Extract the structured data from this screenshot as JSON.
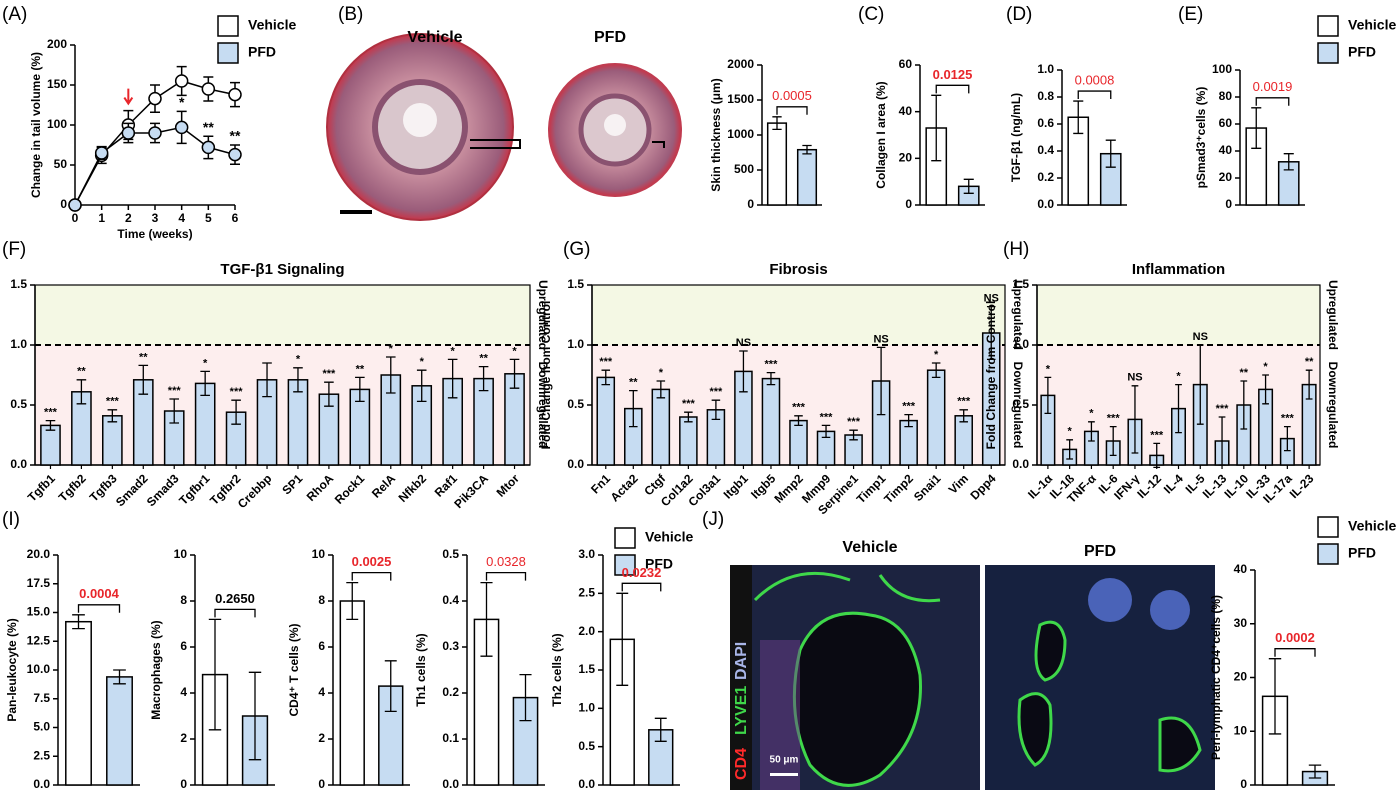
{
  "panel_labels": [
    "(A)",
    "(B)",
    "(C)",
    "(D)",
    "(E)",
    "(F)",
    "(G)",
    "(H)",
    "(I)",
    "(J)"
  ],
  "images": {
    "b_left": "Vehicle",
    "b_right": "PFD",
    "j_left": "Vehicle",
    "j_right": "PFD",
    "stain": [
      "CD4",
      "LYVE1",
      "DAPI"
    ],
    "scale_bar": "50 μm"
  },
  "side_labels": [
    "Upregulated",
    "Downregulated"
  ],
  "chart_data": [
    {
      "type": "line",
      "xlabel": "Time (weeks)",
      "ylabel": "Change in tail volume (%)",
      "x": [
        0,
        1,
        2,
        3,
        4,
        5,
        6
      ],
      "xlim": [
        0,
        6
      ],
      "xticks": [
        0,
        1,
        2,
        3,
        4,
        5,
        6
      ],
      "ylim": [
        0,
        200
      ],
      "yticks": [
        0,
        50,
        100,
        150,
        200
      ],
      "series": [
        {
          "name": "Vehicle",
          "color": "#ffffff",
          "values": [
            0,
            62,
            100,
            133,
            155,
            145,
            138
          ],
          "errors": [
            0,
            10,
            18,
            17,
            18,
            15,
            15
          ]
        },
        {
          "name": "PFD",
          "color": "#c6dcf2",
          "values": [
            0,
            65,
            90,
            90,
            97,
            72,
            63
          ],
          "errors": [
            0,
            8,
            12,
            12,
            20,
            14,
            12
          ]
        }
      ],
      "annotations": [
        null,
        null,
        null,
        null,
        "*",
        "**",
        "**"
      ]
    },
    {
      "type": "bar",
      "ylabel": "Skin thickness (μm)",
      "categories": [
        null,
        null
      ],
      "values": [
        1170,
        790
      ],
      "errors": [
        90,
        60
      ],
      "colors": [
        "#ffffff",
        "#c6dcf2"
      ],
      "ylim": [
        0,
        2000
      ],
      "yticks": [
        0,
        500,
        1000,
        1500,
        2000
      ],
      "p_label": "0.0005",
      "p_color": "#e8262b",
      "p_bold": false
    },
    {
      "type": "bar",
      "ylabel": "Collagen I area (%)",
      "categories": [
        null,
        null
      ],
      "values": [
        33,
        8
      ],
      "errors": [
        14,
        3
      ],
      "colors": [
        "#ffffff",
        "#c6dcf2"
      ],
      "ylim": [
        0,
        60
      ],
      "yticks": [
        0,
        20,
        40,
        60
      ],
      "p_label": "0.0125",
      "p_color": "#e8262b",
      "p_bold": true
    },
    {
      "type": "bar",
      "ylabel": "TGF-β1 (ng/mL)",
      "categories": [
        null,
        null
      ],
      "values": [
        0.65,
        0.38
      ],
      "errors": [
        0.12,
        0.1
      ],
      "colors": [
        "#ffffff",
        "#c6dcf2"
      ],
      "ylim": [
        0,
        1
      ],
      "yticks": [
        {
          "value": 0,
          "label": "0.0"
        },
        0.2,
        0.4,
        0.6,
        0.8,
        {
          "value": 1,
          "label": "1.0"
        }
      ],
      "p_label": "0.0008",
      "p_color": "#e8262b",
      "p_bold": false
    },
    {
      "type": "bar",
      "ylabel": "pSmad3⁺cells (%)",
      "categories": [
        null,
        null
      ],
      "values": [
        57,
        32
      ],
      "errors": [
        15,
        6
      ],
      "colors": [
        "#ffffff",
        "#c6dcf2"
      ],
      "ylim": [
        0,
        100
      ],
      "yticks": [
        0,
        20,
        40,
        60,
        80,
        100
      ],
      "p_label": "0.0019",
      "p_color": "#e8262b",
      "p_bold": false
    },
    {
      "type": "bar",
      "title": "TGF-β1 Signaling",
      "ylabel": "Fold Change from  Control",
      "color": "#c6dcf2",
      "ylim": [
        0,
        1.5
      ],
      "yticks": [
        {
          "value": 0,
          "label": "0.0"
        },
        0.5,
        {
          "value": 1,
          "label": "1.0"
        },
        1.5
      ],
      "reference_line": 1,
      "categories": [
        "Tgfb1",
        "Tgfb2",
        "Tgfb3",
        "Smad2",
        "Smad3",
        "Tgfbr1",
        "Tgfbr2",
        "Crebbp",
        "SP1",
        "RhoA",
        "Rock1",
        "RelA",
        "Nfkb2",
        "Raf1",
        "Pik3CA",
        "Mtor"
      ],
      "values": [
        0.33,
        0.61,
        0.41,
        0.71,
        0.45,
        0.68,
        0.44,
        0.71,
        0.71,
        0.59,
        0.63,
        0.75,
        0.66,
        0.72,
        0.72,
        0.76
      ],
      "errors": [
        0.04,
        0.1,
        0.05,
        0.12,
        0.1,
        0.1,
        0.1,
        0.14,
        0.1,
        0.1,
        0.1,
        0.15,
        0.13,
        0.16,
        0.1,
        0.12
      ],
      "annotations": [
        "***",
        "**",
        "***",
        "**",
        "***",
        "*",
        "***",
        null,
        "*",
        "***",
        "**",
        "*",
        "*",
        "*",
        "**",
        "*"
      ]
    },
    {
      "type": "bar",
      "title": "Fibrosis",
      "ylabel": "Fold Change from  Control",
      "color": "#c6dcf2",
      "ylim": [
        0,
        1.5
      ],
      "yticks": [
        {
          "value": 0,
          "label": "0.0"
        },
        0.5,
        {
          "value": 1,
          "label": "1.0"
        },
        1.5
      ],
      "reference_line": 1,
      "categories": [
        "Fn1",
        "Acta2",
        "Ctgf",
        "Col1a2",
        "Col3a1",
        "Itgb1",
        "Itgb5",
        "Mmp2",
        "Mmp9",
        "Serpine1",
        "Timp1",
        "Timp2",
        "Snai1",
        "Vim",
        "Dpp4"
      ],
      "values": [
        0.73,
        0.47,
        0.63,
        0.4,
        0.46,
        0.78,
        0.72,
        0.37,
        0.28,
        0.25,
        0.7,
        0.37,
        0.79,
        0.41,
        1.1
      ],
      "errors": [
        0.06,
        0.15,
        0.07,
        0.04,
        0.08,
        0.17,
        0.05,
        0.04,
        0.05,
        0.04,
        0.28,
        0.05,
        0.06,
        0.05,
        0.22
      ],
      "annotations": [
        "***",
        "**",
        "*",
        "***",
        "***",
        "NS",
        "***",
        "***",
        "***",
        "***",
        "NS",
        "***",
        "*",
        "***",
        "NS"
      ]
    },
    {
      "type": "bar",
      "title": "Inflammation",
      "ylabel": "Fold Change from  Control",
      "color": "#c6dcf2",
      "ylim": [
        0,
        1.5
      ],
      "yticks": [
        {
          "value": 0,
          "label": "0.0"
        },
        0.5,
        {
          "value": 1,
          "label": "1.0"
        },
        1.5
      ],
      "reference_line": 1,
      "categories": [
        "IL-1α",
        "IL-1ß",
        "TNF-α",
        "IL-6",
        "IFN-γ",
        "IL-12",
        "IL-4",
        "IL-5",
        "IL-13",
        "IL-10",
        "IL-33",
        "IL-17a",
        "IL-23"
      ],
      "values": [
        0.58,
        0.13,
        0.28,
        0.2,
        0.38,
        0.08,
        0.47,
        0.67,
        0.2,
        0.5,
        0.63,
        0.22,
        0.67
      ],
      "errors": [
        0.15,
        0.08,
        0.08,
        0.12,
        0.28,
        0.1,
        0.2,
        0.33,
        0.2,
        0.2,
        0.12,
        0.1,
        0.12
      ],
      "annotations": [
        "*",
        "*",
        "*",
        "***",
        "NS",
        "***",
        "*",
        "NS",
        "***",
        "**",
        "*",
        "***",
        "**"
      ]
    },
    {
      "type": "bar",
      "ylabel": "Pan-leukocyte (%)",
      "categories": [
        null,
        null
      ],
      "values": [
        14.2,
        9.4
      ],
      "errors": [
        0.6,
        0.6
      ],
      "colors": [
        "#ffffff",
        "#c6dcf2"
      ],
      "ylim": [
        0,
        20
      ],
      "yticks": [
        {
          "value": 0,
          "label": "0.0"
        },
        {
          "value": 2.5,
          "label": "2.5"
        },
        {
          "value": 5,
          "label": "5.0"
        },
        {
          "value": 7.5,
          "label": "7.5"
        },
        {
          "value": 10,
          "label": "10.0"
        },
        {
          "value": 12.5,
          "label": "12.5"
        },
        {
          "value": 15,
          "label": "15.0"
        },
        {
          "value": 17.5,
          "label": "17.5"
        },
        {
          "value": 20,
          "label": "20.0"
        }
      ],
      "p_label": "0.0004",
      "p_color": "#e8262b",
      "p_bold": true
    },
    {
      "type": "bar",
      "ylabel": "Macrophages (%)",
      "categories": [
        null,
        null
      ],
      "values": [
        4.8,
        3.0
      ],
      "errors": [
        2.4,
        1.9
      ],
      "colors": [
        "#ffffff",
        "#c6dcf2"
      ],
      "ylim": [
        0,
        10
      ],
      "yticks": [
        0,
        2,
        4,
        6,
        8,
        10
      ],
      "p_label": "0.2650",
      "p_color": "#000000",
      "p_bold": true
    },
    {
      "type": "bar",
      "ylabel": "CD4⁺ T cells (%)",
      "categories": [
        null,
        null
      ],
      "values": [
        8.0,
        4.3
      ],
      "errors": [
        0.8,
        1.1
      ],
      "colors": [
        "#ffffff",
        "#c6dcf2"
      ],
      "ylim": [
        0,
        10
      ],
      "yticks": [
        0,
        2,
        4,
        6,
        8,
        10
      ],
      "p_label": "0.0025",
      "p_color": "#e8262b",
      "p_bold": true
    },
    {
      "type": "bar",
      "ylabel": "Th1 cells (%)",
      "categories": [
        null,
        null
      ],
      "values": [
        0.36,
        0.19
      ],
      "errors": [
        0.08,
        0.05
      ],
      "colors": [
        "#ffffff",
        "#c6dcf2"
      ],
      "ylim": [
        0,
        0.5
      ],
      "yticks": [
        {
          "value": 0,
          "label": "0.0"
        },
        0.1,
        0.2,
        0.3,
        0.4,
        0.5
      ],
      "p_label": "0.0328",
      "p_color": "#e8262b",
      "p_bold": false
    },
    {
      "type": "bar",
      "ylabel": "Th2 cells (%)",
      "categories": [
        null,
        null
      ],
      "values": [
        1.9,
        0.72
      ],
      "errors": [
        0.6,
        0.15
      ],
      "colors": [
        "#ffffff",
        "#c6dcf2"
      ],
      "ylim": [
        0,
        3
      ],
      "yticks": [
        {
          "value": 0,
          "label": "0.0"
        },
        0.5,
        {
          "value": 1,
          "label": "1.0"
        },
        1.5,
        {
          "value": 2,
          "label": "2.0"
        },
        2.5,
        {
          "value": 3,
          "label": "3.0"
        }
      ],
      "p_label": "0.0232",
      "p_color": "#e8262b",
      "p_bold": true
    },
    {
      "type": "bar",
      "ylabel": "Peri-lymphatic CD4⁺cells (%)",
      "categories": [
        null,
        null
      ],
      "values": [
        16.5,
        2.5
      ],
      "errors": [
        7,
        1.2
      ],
      "colors": [
        "#ffffff",
        "#c6dcf2"
      ],
      "ylim": [
        0,
        40
      ],
      "yticks": [
        0,
        10,
        20,
        30,
        40
      ],
      "p_label": "0.0002",
      "p_color": "#e8262b",
      "p_bold": true
    }
  ]
}
